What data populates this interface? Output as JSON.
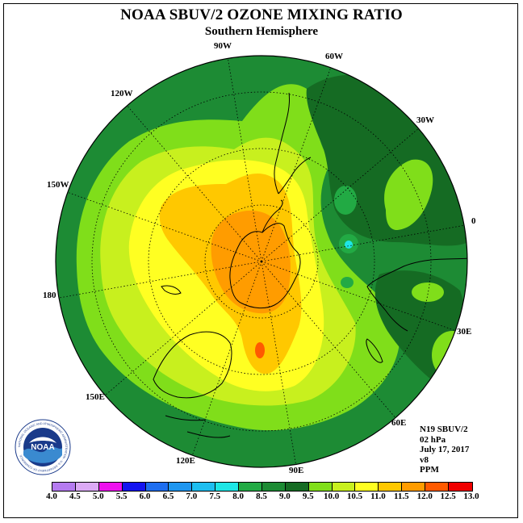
{
  "title": "NOAA SBUV/2 OZONE MIXING RATIO",
  "subtitle": "Southern Hemisphere",
  "longitude_labels": [
    "90W",
    "60W",
    "30W",
    "0",
    "30E",
    "60E",
    "90E",
    "120E",
    "150E",
    "180",
    "150W",
    "120W"
  ],
  "info": {
    "satellite": "N19 SBUV/2",
    "level": "02 hPa",
    "date": "July 17, 2017",
    "version": "v8",
    "units": "PPM"
  },
  "colorbar": {
    "labels": [
      "4.0",
      "4.5",
      "5.0",
      "5.5",
      "6.0",
      "6.5",
      "7.0",
      "7.5",
      "8.0",
      "8.5",
      "9.0",
      "9.5",
      "10.0",
      "10.5",
      "11.0",
      "11.5",
      "12.0",
      "12.5",
      "13.0"
    ],
    "colors": [
      "#b57bf0",
      "#dcaaf5",
      "#ee11ee",
      "#1414f0",
      "#1e6ef0",
      "#1e96f0",
      "#1ebef0",
      "#1ee6e6",
      "#22aa44",
      "#1d8b34",
      "#156b23",
      "#80de1a",
      "#c8f01e",
      "#ffff22",
      "#ffc800",
      "#ff9c00",
      "#ff5a00",
      "#f00000",
      "#8b5a3c"
    ]
  },
  "logo": {
    "text": "NOAA",
    "ring_text": "NATIONAL OCEANIC AND ATMOSPHERIC ADMINISTRATION · U.S. DEPARTMENT OF COMMERCE",
    "icon": "noaa-logo-icon"
  }
}
